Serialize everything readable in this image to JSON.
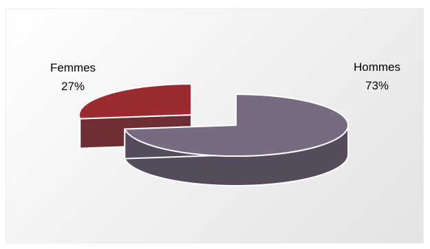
{
  "chart_data": {
    "type": "pie",
    "style": "3d-exploded",
    "title": "",
    "categories": [
      "Femmes",
      "Hommes"
    ],
    "values": [
      27,
      73
    ],
    "labels": [
      {
        "name": "Femmes",
        "percent": "27%"
      },
      {
        "name": "Hommes",
        "percent": "73%"
      }
    ],
    "colors": {
      "Femmes": {
        "top": "#9b2a31",
        "side": "#6e2e33"
      },
      "Hommes": {
        "top": "#776b82",
        "side": "#544b5d"
      }
    },
    "legend": "none",
    "data_labels": "outside"
  }
}
